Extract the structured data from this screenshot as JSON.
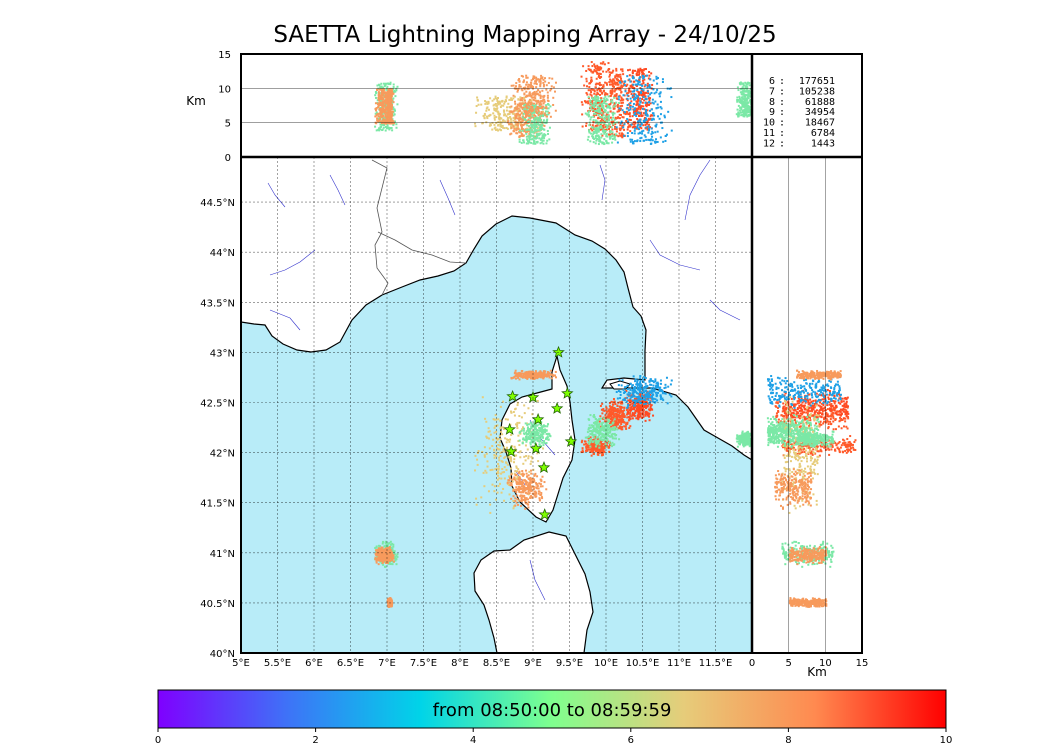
{
  "title": "SAETTA Lightning Mapping Array - 24/10/25",
  "chart_data": {
    "type": "scatter",
    "title": "SAETTA Lightning Mapping Array - 24/10/25",
    "map": {
      "xlim": [
        5.0,
        12.0
      ],
      "ylim": [
        40.0,
        44.95
      ],
      "lon_ticks": [
        "5°E",
        "5.5°E",
        "6°E",
        "6.5°E",
        "7°E",
        "7.5°E",
        "8°E",
        "8.5°E",
        "9°E",
        "9.5°E",
        "10°E",
        "10.5°E",
        "11°E",
        "11.5°E"
      ],
      "lat_ticks": [
        "40°N",
        "40.5°N",
        "41°N",
        "41.5°N",
        "42°N",
        "42.5°N",
        "43°N",
        "43.5°N",
        "44°N",
        "44.5°N"
      ],
      "grid": true,
      "station_markers": [
        [
          9.35,
          43.0
        ],
        [
          8.72,
          42.56
        ],
        [
          9.0,
          42.55
        ],
        [
          9.47,
          42.59
        ],
        [
          9.07,
          42.33
        ],
        [
          8.68,
          42.23
        ],
        [
          9.33,
          42.44
        ],
        [
          9.52,
          42.11
        ],
        [
          8.7,
          42.01
        ],
        [
          9.04,
          42.04
        ],
        [
          9.15,
          41.85
        ],
        [
          9.16,
          41.38
        ]
      ]
    },
    "altitude_top": {
      "ylabel": "Km",
      "y_ticks": [
        "0",
        "5",
        "10",
        "15"
      ],
      "ylim": [
        0,
        15
      ]
    },
    "altitude_right": {
      "xlabel": "Km",
      "x_ticks": [
        "0",
        "5",
        "10",
        "15"
      ],
      "xlim": [
        0,
        15
      ]
    },
    "counts_legend": [
      {
        "hour": "6",
        "count": "177651",
        "highlight": false
      },
      {
        "hour": "7",
        "count": "105238",
        "highlight": true
      },
      {
        "hour": "8",
        "count": "61888",
        "highlight": false
      },
      {
        "hour": "9",
        "count": "34954",
        "highlight": false
      },
      {
        "hour": "10",
        "count": "18467",
        "highlight": false
      },
      {
        "hour": "11",
        "count": "6784",
        "highlight": false
      },
      {
        "hour": "12",
        "count": "1443",
        "highlight": false
      }
    ],
    "clusters": [
      {
        "lon": [
          9.7,
          10.0
        ],
        "lat": [
          42.0,
          42.15
        ],
        "alt": [
          4,
          14
        ],
        "color": "#ff5a2a"
      },
      {
        "lon": [
          9.95,
          10.3
        ],
        "lat": [
          42.25,
          42.5
        ],
        "alt": [
          3,
          13
        ],
        "color": "#ff5a2a"
      },
      {
        "lon": [
          10.3,
          10.6
        ],
        "lat": [
          42.35,
          42.6
        ],
        "alt": [
          4,
          13
        ],
        "color": "#ff4a22"
      },
      {
        "lon": [
          10.2,
          10.8
        ],
        "lat": [
          42.5,
          42.75
        ],
        "alt": [
          2,
          12
        ],
        "color": "#1ea0e6"
      },
      {
        "lon": [
          9.75,
          10.1
        ],
        "lat": [
          42.1,
          42.35
        ],
        "alt": [
          2,
          9
        ],
        "color": "#7be8a6"
      },
      {
        "lon": [
          8.3,
          9.0
        ],
        "lat": [
          41.55,
          42.45
        ],
        "alt": [
          4,
          9
        ],
        "color": "#e6cc7a"
      },
      {
        "lon": [
          8.7,
          9.1
        ],
        "lat": [
          41.5,
          41.8
        ],
        "alt": [
          3,
          8
        ],
        "color": "#f79a5c"
      },
      {
        "lon": [
          8.85,
          9.2
        ],
        "lat": [
          42.1,
          42.3
        ],
        "alt": [
          2,
          8
        ],
        "color": "#7be8a6"
      },
      {
        "lon": [
          8.75,
          9.25
        ],
        "lat": [
          42.75,
          42.82
        ],
        "alt": [
          6,
          12
        ],
        "color": "#f79a5c"
      },
      {
        "lon": [
          6.85,
          7.1
        ],
        "lat": [
          40.9,
          41.1
        ],
        "alt": [
          4,
          11
        ],
        "color": "#7be8a6"
      },
      {
        "lon": [
          6.85,
          7.05
        ],
        "lat": [
          40.92,
          41.05
        ],
        "alt": [
          5,
          10
        ],
        "color": "#f79a5c"
      },
      {
        "lon": [
          7.0,
          7.05
        ],
        "lat": [
          40.48,
          40.55
        ],
        "alt": [
          5,
          10
        ],
        "color": "#f79a5c"
      },
      {
        "lon": [
          11.8,
          12.0
        ],
        "lat": [
          42.08,
          42.2
        ],
        "alt": [
          6,
          11
        ],
        "color": "#7be8a6"
      }
    ],
    "colorbar": {
      "label": "from 08:50:00 to 08:59:59",
      "ticks": [
        "0",
        "2",
        "4",
        "6",
        "8",
        "10"
      ],
      "range": [
        0,
        10
      ],
      "colors": [
        "#7f00ff",
        "#3d74f7",
        "#00d4e8",
        "#7fff8e",
        "#e6cc7a",
        "#ff8a50",
        "#ff0000"
      ]
    }
  }
}
